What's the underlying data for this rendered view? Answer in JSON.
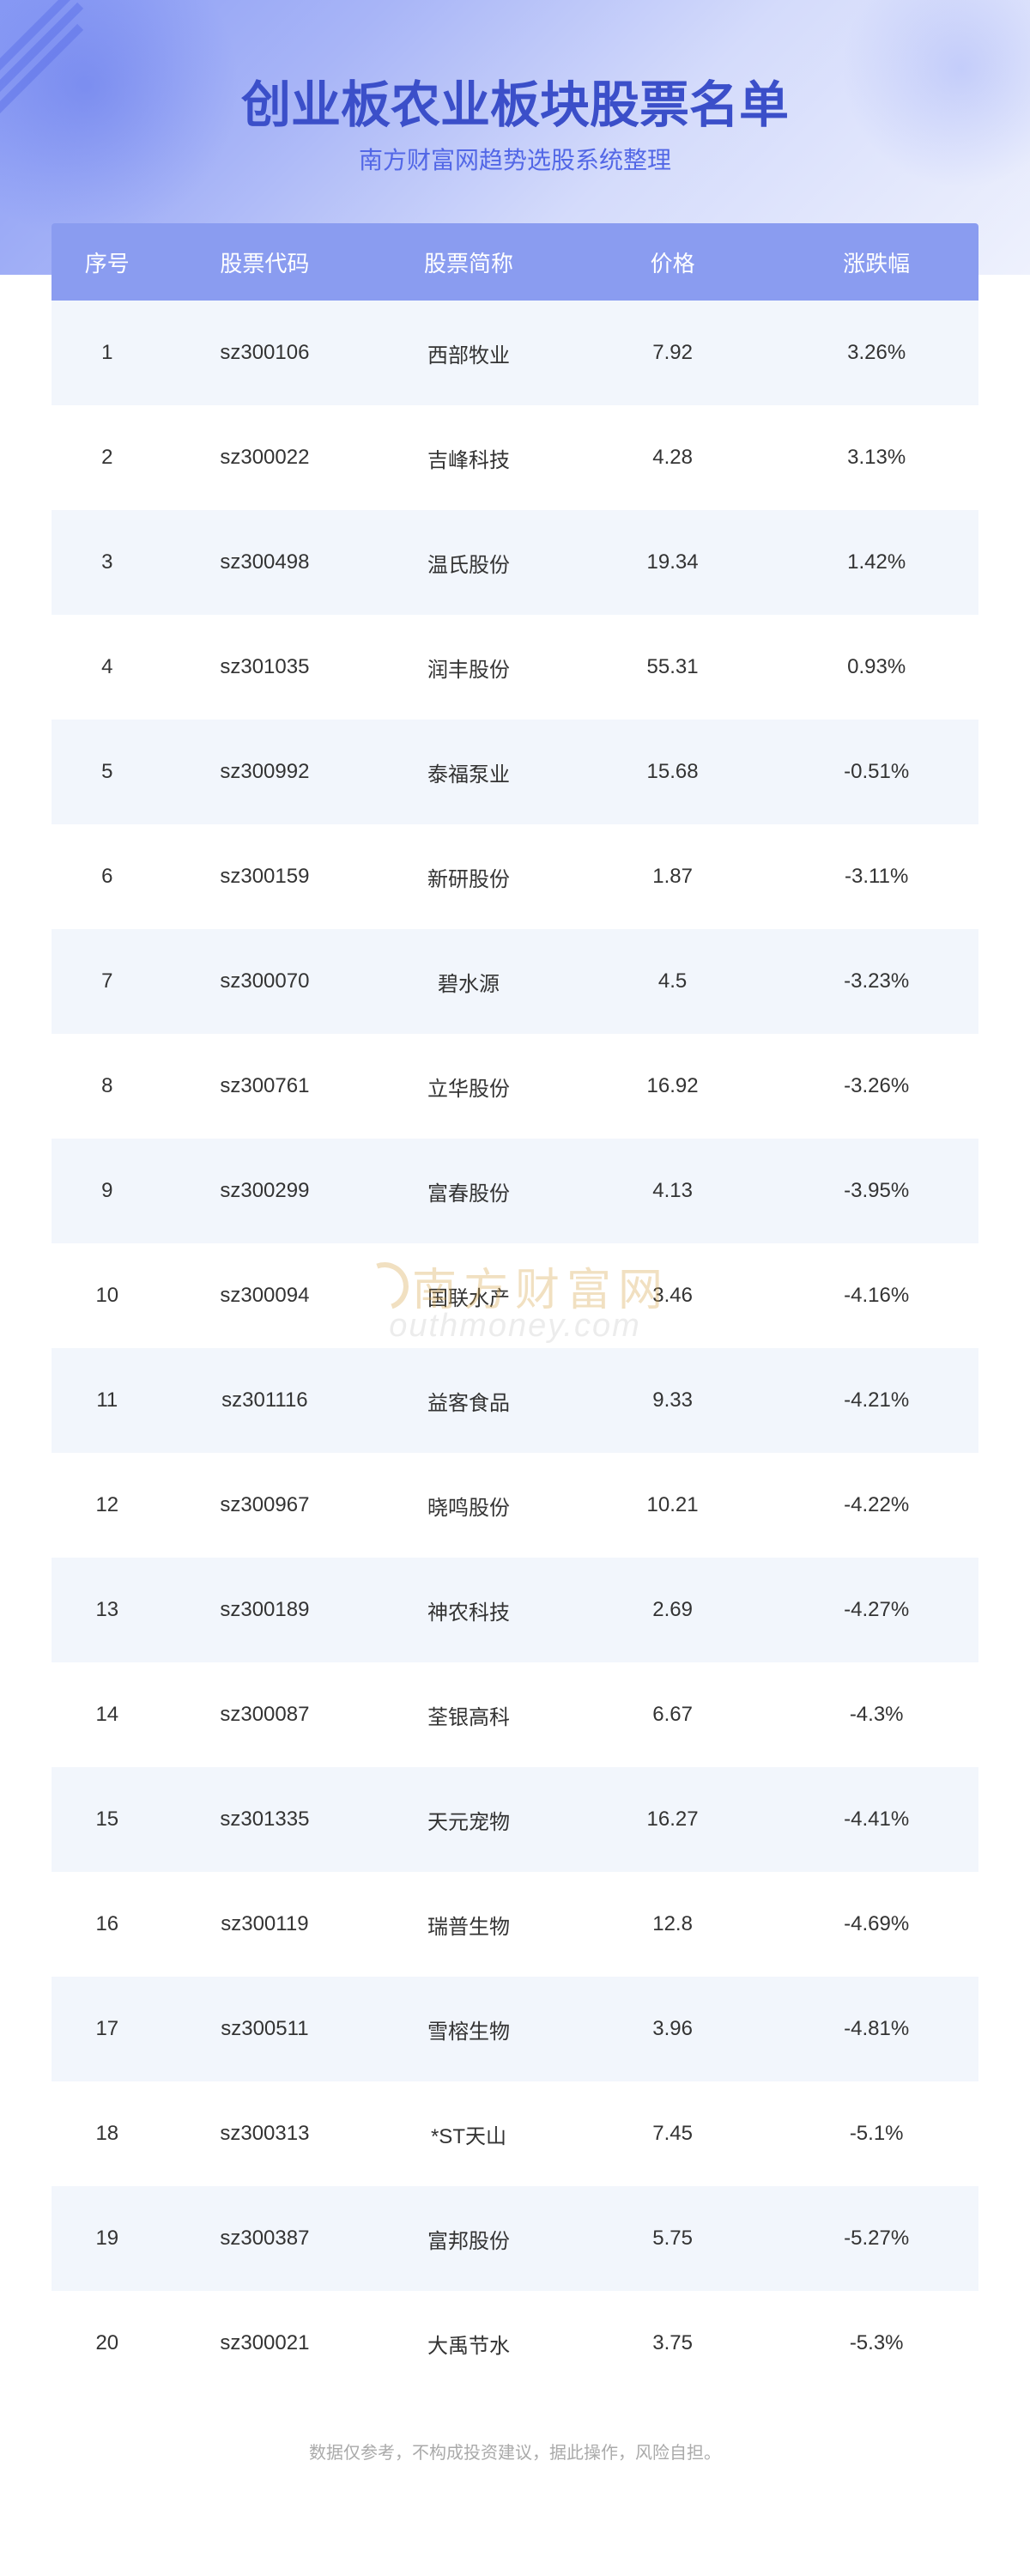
{
  "title": "创业板农业板块股票名单",
  "subtitle": "南方财富网趋势选股系统整理",
  "watermark": {
    "cn": "南方财富网",
    "en": "outhmoney.com"
  },
  "disclaimer": "数据仅参考，不构成投资建议，据此操作，风险自担。",
  "table": {
    "header_bg": "#8a9cf0",
    "header_color": "#ffffff",
    "row_odd_bg": "#f2f6fc",
    "row_even_bg": "#ffffff",
    "text_color": "#333333",
    "columns": [
      "序号",
      "股票代码",
      "股票简称",
      "价格",
      "涨跌幅"
    ],
    "rows": [
      {
        "idx": "1",
        "code": "sz300106",
        "name": "西部牧业",
        "price": "7.92",
        "change": "3.26%"
      },
      {
        "idx": "2",
        "code": "sz300022",
        "name": "吉峰科技",
        "price": "4.28",
        "change": "3.13%"
      },
      {
        "idx": "3",
        "code": "sz300498",
        "name": "温氏股份",
        "price": "19.34",
        "change": "1.42%"
      },
      {
        "idx": "4",
        "code": "sz301035",
        "name": "润丰股份",
        "price": "55.31",
        "change": "0.93%"
      },
      {
        "idx": "5",
        "code": "sz300992",
        "name": "泰福泵业",
        "price": "15.68",
        "change": "-0.51%"
      },
      {
        "idx": "6",
        "code": "sz300159",
        "name": "新研股份",
        "price": "1.87",
        "change": "-3.11%"
      },
      {
        "idx": "7",
        "code": "sz300070",
        "name": "碧水源",
        "price": "4.5",
        "change": "-3.23%"
      },
      {
        "idx": "8",
        "code": "sz300761",
        "name": "立华股份",
        "price": "16.92",
        "change": "-3.26%"
      },
      {
        "idx": "9",
        "code": "sz300299",
        "name": "富春股份",
        "price": "4.13",
        "change": "-3.95%"
      },
      {
        "idx": "10",
        "code": "sz300094",
        "name": "国联水产",
        "price": "3.46",
        "change": "-4.16%"
      },
      {
        "idx": "11",
        "code": "sz301116",
        "name": "益客食品",
        "price": "9.33",
        "change": "-4.21%"
      },
      {
        "idx": "12",
        "code": "sz300967",
        "name": "晓鸣股份",
        "price": "10.21",
        "change": "-4.22%"
      },
      {
        "idx": "13",
        "code": "sz300189",
        "name": "神农科技",
        "price": "2.69",
        "change": "-4.27%"
      },
      {
        "idx": "14",
        "code": "sz300087",
        "name": "荃银高科",
        "price": "6.67",
        "change": "-4.3%"
      },
      {
        "idx": "15",
        "code": "sz301335",
        "name": "天元宠物",
        "price": "16.27",
        "change": "-4.41%"
      },
      {
        "idx": "16",
        "code": "sz300119",
        "name": "瑞普生物",
        "price": "12.8",
        "change": "-4.69%"
      },
      {
        "idx": "17",
        "code": "sz300511",
        "name": "雪榕生物",
        "price": "3.96",
        "change": "-4.81%"
      },
      {
        "idx": "18",
        "code": "sz300313",
        "name": "*ST天山",
        "price": "7.45",
        "change": "-5.1%"
      },
      {
        "idx": "19",
        "code": "sz300387",
        "name": "富邦股份",
        "price": "5.75",
        "change": "-5.27%"
      },
      {
        "idx": "20",
        "code": "sz300021",
        "name": "大禹节水",
        "price": "3.75",
        "change": "-5.3%"
      }
    ]
  }
}
